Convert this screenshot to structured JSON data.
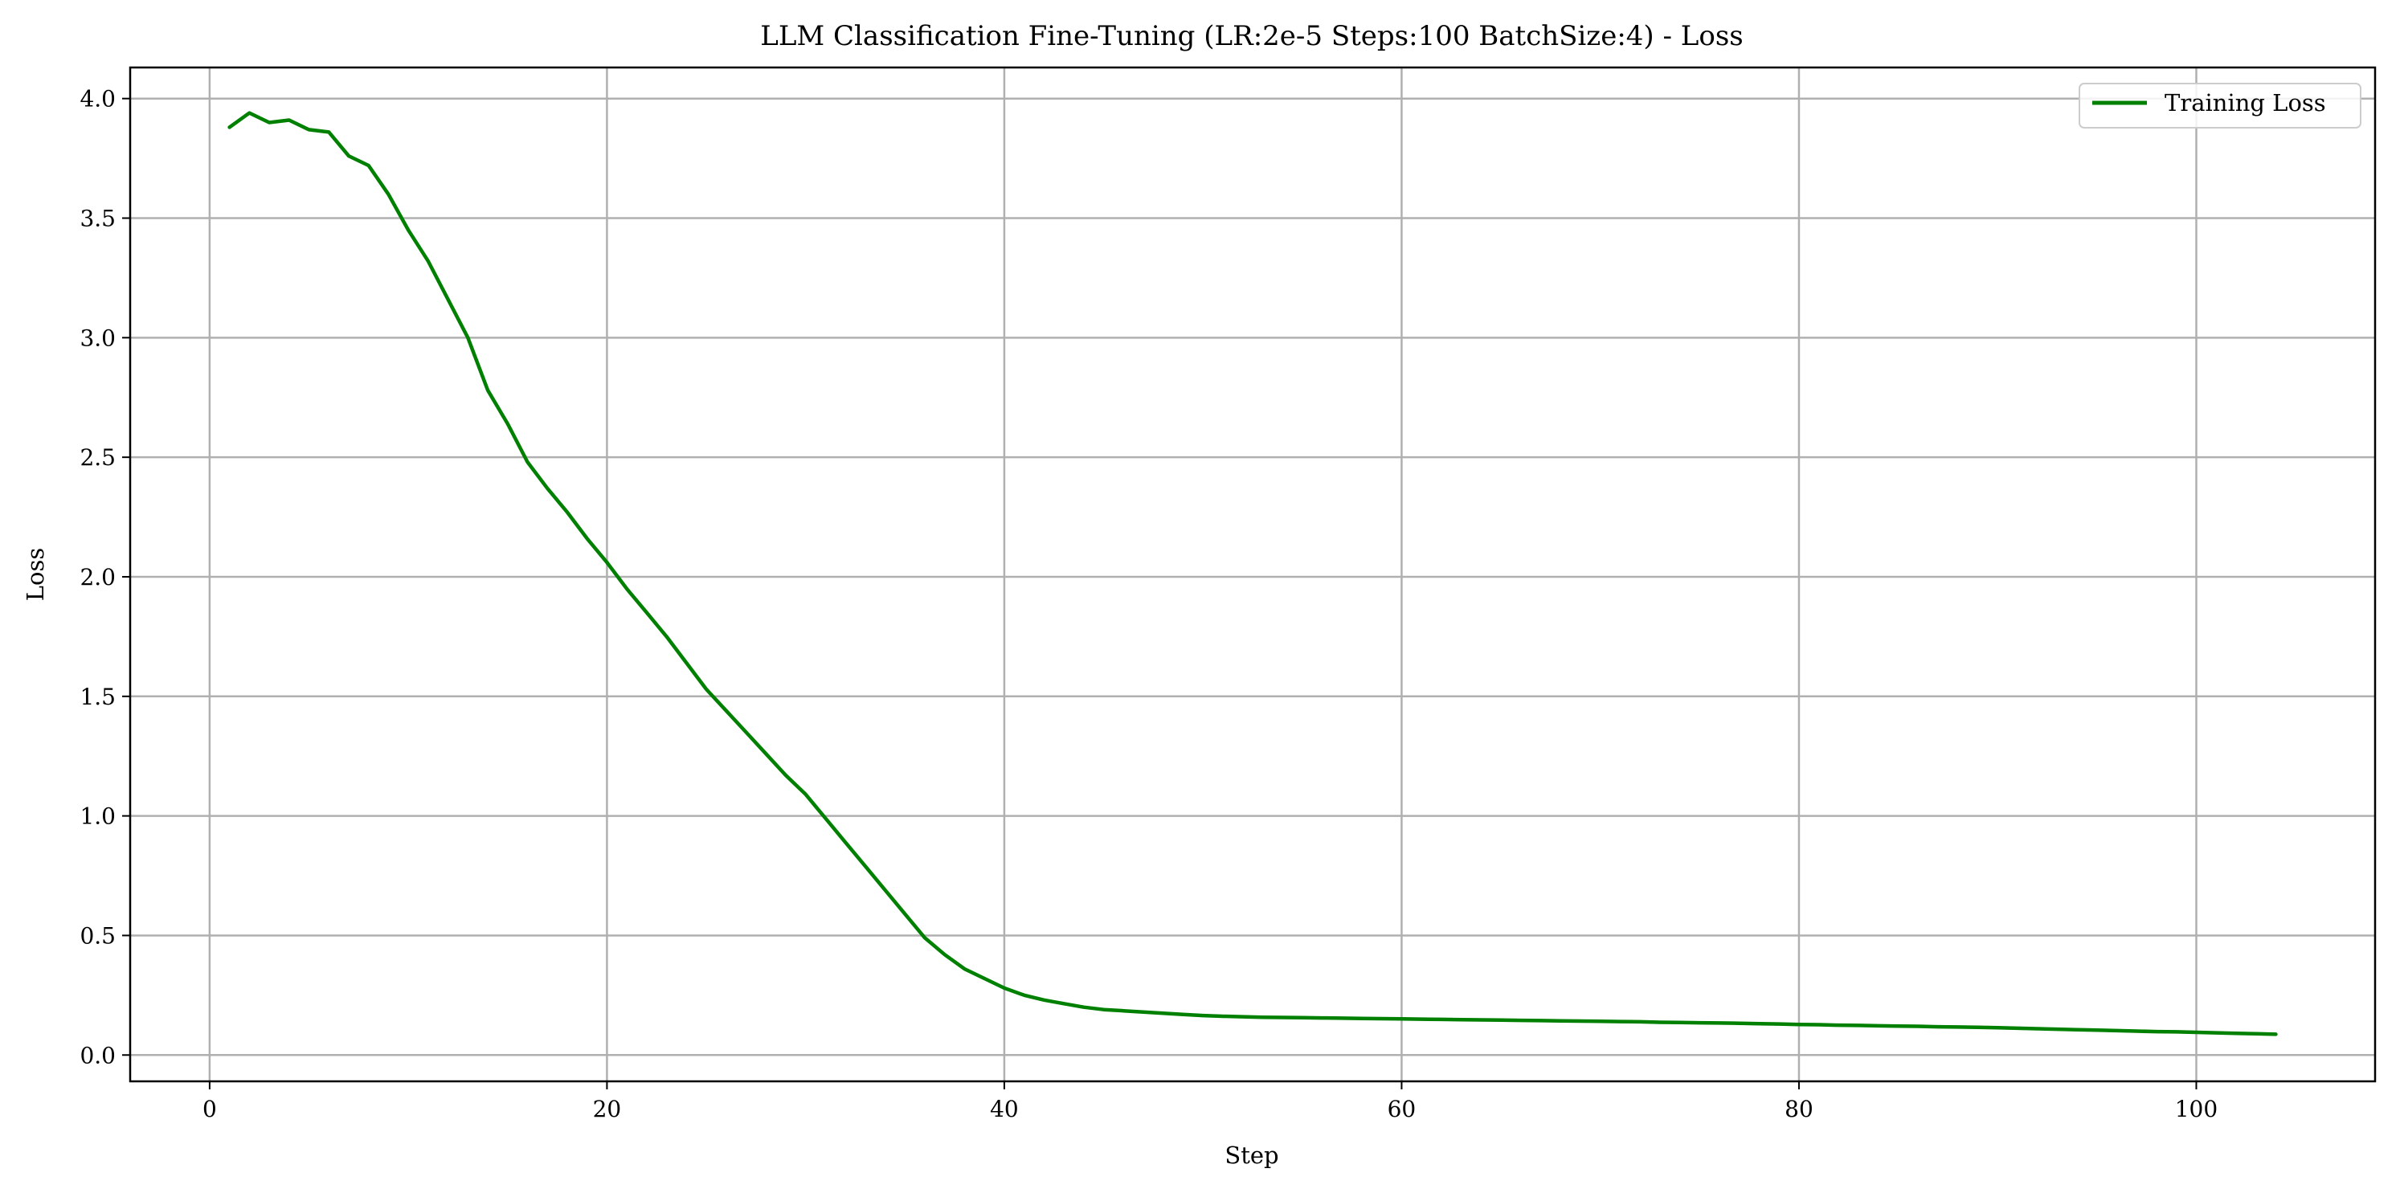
{
  "chart_data": {
    "type": "line",
    "title": "LLM Classification Fine-Tuning (LR:2e-5 Steps:100 BatchSize:4) - Loss",
    "xlabel": "Step",
    "ylabel": "Loss",
    "xlim": [
      -4,
      109
    ],
    "ylim": [
      -0.11,
      4.13
    ],
    "xticks": [
      0,
      20,
      40,
      60,
      80,
      100
    ],
    "yticks": [
      0.0,
      0.5,
      1.0,
      1.5,
      2.0,
      2.5,
      3.0,
      3.5,
      4.0
    ],
    "xtick_labels": [
      "0",
      "20",
      "40",
      "60",
      "80",
      "100"
    ],
    "ytick_labels": [
      "0.0",
      "0.5",
      "1.0",
      "1.5",
      "2.0",
      "2.5",
      "3.0",
      "3.5",
      "4.0"
    ],
    "grid": true,
    "legend_position": "top-right",
    "series": [
      {
        "name": "Training Loss",
        "color": "#008000",
        "x": [
          1,
          2,
          3,
          4,
          5,
          6,
          7,
          8,
          9,
          10,
          11,
          12,
          13,
          14,
          15,
          16,
          17,
          18,
          19,
          20,
          21,
          22,
          23,
          24,
          25,
          26,
          27,
          28,
          29,
          30,
          31,
          32,
          33,
          34,
          35,
          36,
          37,
          38,
          39,
          40,
          41,
          42,
          43,
          44,
          45,
          46,
          47,
          48,
          49,
          50,
          51,
          52,
          53,
          54,
          55,
          56,
          57,
          58,
          59,
          60,
          61,
          62,
          63,
          64,
          65,
          66,
          67,
          68,
          69,
          70,
          71,
          72,
          73,
          74,
          75,
          76,
          77,
          78,
          79,
          80,
          81,
          82,
          83,
          84,
          85,
          86,
          87,
          88,
          89,
          90,
          91,
          92,
          93,
          94,
          95,
          96,
          97,
          98,
          99,
          100,
          101,
          102,
          103,
          104
        ],
        "y": [
          3.88,
          3.94,
          3.9,
          3.91,
          3.87,
          3.86,
          3.76,
          3.72,
          3.6,
          3.45,
          3.32,
          3.16,
          3.0,
          2.78,
          2.64,
          2.48,
          2.37,
          2.27,
          2.16,
          2.06,
          1.95,
          1.85,
          1.75,
          1.64,
          1.53,
          1.44,
          1.35,
          1.26,
          1.17,
          1.09,
          0.99,
          0.89,
          0.79,
          0.69,
          0.59,
          0.49,
          0.42,
          0.36,
          0.32,
          0.28,
          0.25,
          0.23,
          0.215,
          0.2,
          0.19,
          0.185,
          0.18,
          0.175,
          0.17,
          0.165,
          0.162,
          0.16,
          0.158,
          0.157,
          0.156,
          0.155,
          0.154,
          0.153,
          0.152,
          0.151,
          0.15,
          0.149,
          0.148,
          0.147,
          0.146,
          0.145,
          0.144,
          0.143,
          0.142,
          0.141,
          0.14,
          0.139,
          0.137,
          0.136,
          0.135,
          0.134,
          0.133,
          0.131,
          0.13,
          0.128,
          0.127,
          0.125,
          0.124,
          0.122,
          0.121,
          0.12,
          0.118,
          0.117,
          0.116,
          0.114,
          0.112,
          0.11,
          0.108,
          0.106,
          0.104,
          0.102,
          0.1,
          0.098,
          0.097,
          0.095,
          0.093,
          0.091,
          0.089,
          0.087
        ]
      }
    ]
  }
}
